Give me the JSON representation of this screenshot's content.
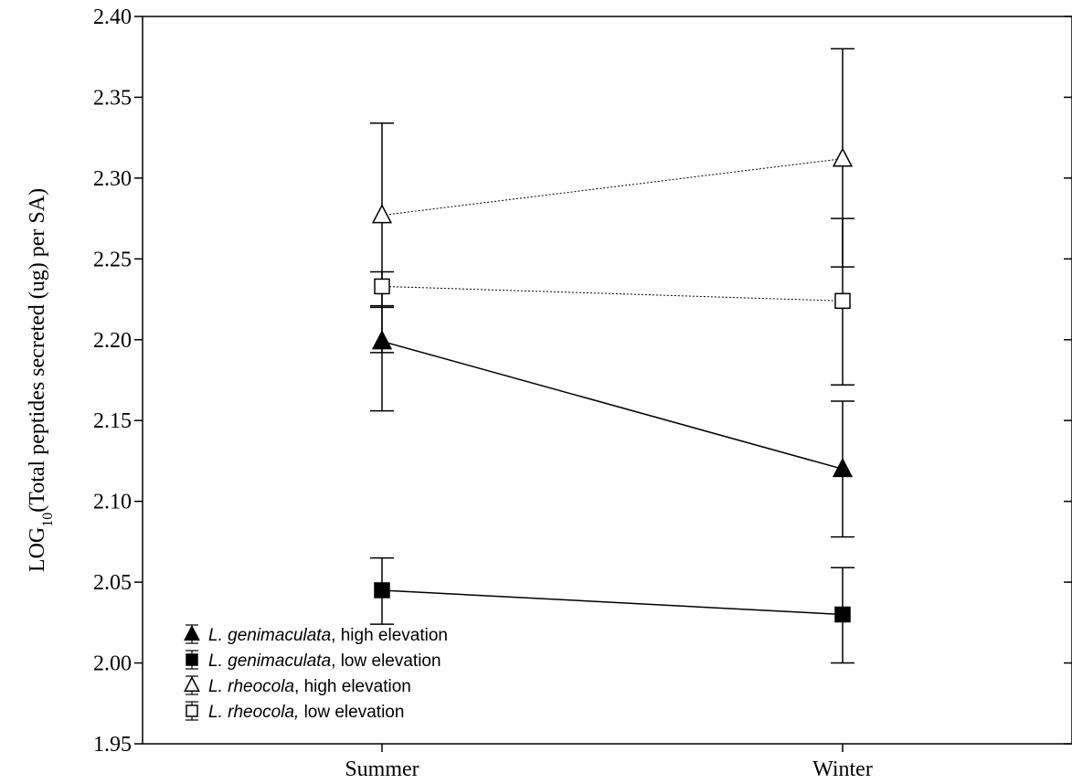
{
  "chart_data": {
    "type": "line",
    "title": "",
    "xlabel": "",
    "ylabel_prefix": "LOG",
    "ylabel_subscript": "10",
    "ylabel_suffix": "(Total peptides secreted (ug) per SA)",
    "categories": [
      "Summer",
      "Winter"
    ],
    "ylim": [
      1.95,
      2.4
    ],
    "yticks": [
      1.95,
      2.0,
      2.05,
      2.1,
      2.15,
      2.2,
      2.25,
      2.3,
      2.35,
      2.4
    ],
    "ytick_labels": [
      "1.95",
      "2.00",
      "2.05",
      "2.10",
      "2.15",
      "2.20",
      "2.25",
      "2.30",
      "2.35",
      "2.40"
    ],
    "grid": false,
    "legend_position": "bottom-left",
    "series": [
      {
        "legend_species": "L. genimaculata",
        "legend_suffix": ", high elevation",
        "marker": "triangle",
        "filled": true,
        "line_style": "solid",
        "values": [
          2.199,
          2.12
        ],
        "error_low": [
          2.156,
          2.078
        ],
        "error_high": [
          2.221,
          2.162
        ]
      },
      {
        "legend_species": "L. genimaculata",
        "legend_suffix": ", low elevation",
        "marker": "square",
        "filled": true,
        "line_style": "solid",
        "values": [
          2.045,
          2.03
        ],
        "error_low": [
          2.024,
          2.0
        ],
        "error_high": [
          2.065,
          2.059
        ]
      },
      {
        "legend_species": "L. rheocola",
        "legend_suffix": ", high elevation",
        "marker": "triangle",
        "filled": false,
        "line_style": "dotted",
        "values": [
          2.277,
          2.312
        ],
        "error_low": [
          2.192,
          2.245
        ],
        "error_high": [
          2.334,
          2.38
        ]
      },
      {
        "legend_species": "L. rheocola,",
        "legend_suffix": " low elevation",
        "marker": "square",
        "filled": false,
        "line_style": "dotted",
        "values": [
          2.233,
          2.224
        ],
        "error_low": [
          2.22,
          2.172
        ],
        "error_high": [
          2.242,
          2.275
        ]
      }
    ],
    "colors": {
      "ink": "#000000",
      "background": "#ffffff"
    }
  }
}
